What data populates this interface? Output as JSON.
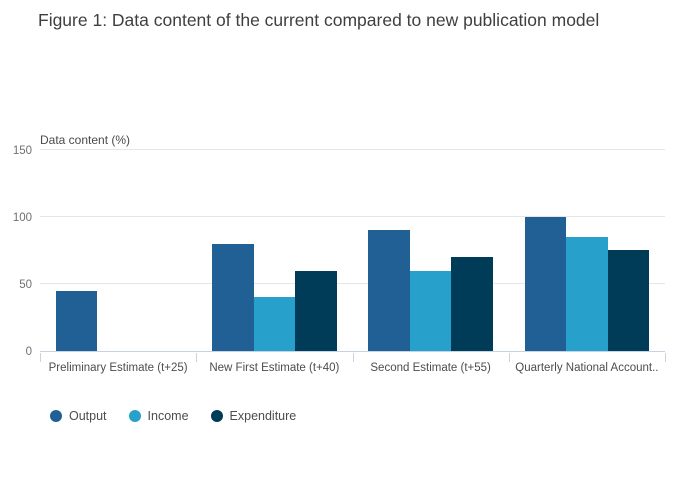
{
  "title": "Figure 1: Data content of the current compared to new publication model",
  "colors": {
    "gridline": "#e6e6e6",
    "axis_line": "#c6d3e3",
    "title_text": "#3f3f3f",
    "tick_text": "#707070",
    "label_text": "#4d4d4d"
  },
  "chart_data": {
    "type": "bar",
    "title": "Figure 1: Data content of the current compared to new publication model",
    "xlabel": "",
    "ylabel": "Data content (%)",
    "ylim": [
      0,
      150
    ],
    "yticks": [
      0,
      50,
      100,
      150
    ],
    "grid": true,
    "legend_position": "bottom",
    "categories": [
      "Preliminary Estimate (t+25)",
      "New First Estimate (t+40)",
      "Second Estimate (t+55)",
      "Quarterly National Account.."
    ],
    "series": [
      {
        "name": "Output",
        "color": "#206095",
        "values": [
          45,
          80,
          90,
          100
        ]
      },
      {
        "name": "Income",
        "color": "#27a0cc",
        "values": [
          0,
          40,
          60,
          85
        ]
      },
      {
        "name": "Expenditure",
        "color": "#003c57",
        "values": [
          0,
          60,
          70,
          75
        ]
      }
    ]
  }
}
